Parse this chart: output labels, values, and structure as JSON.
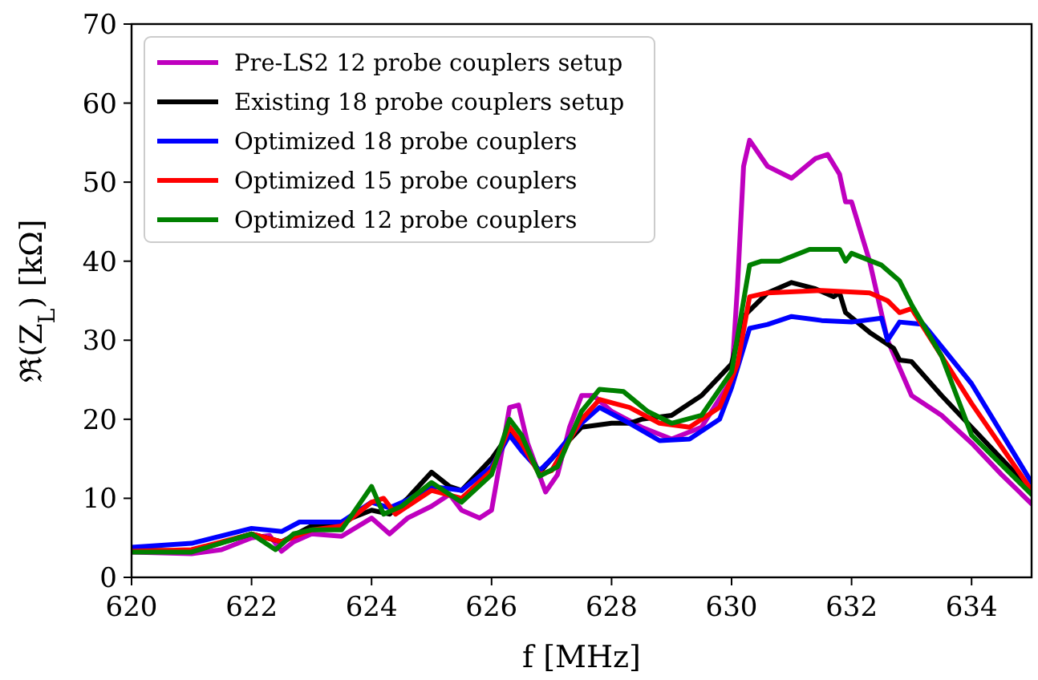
{
  "chart_data": {
    "type": "line",
    "xlabel": "f [MHz]",
    "ylabel": "ℜ(Z$_{L}$) [kΩ]",
    "xlim": [
      620,
      635
    ],
    "ylim": [
      0,
      70
    ],
    "xticks": [
      620,
      622,
      624,
      626,
      628,
      630,
      632,
      634
    ],
    "yticks": [
      0,
      10,
      20,
      30,
      40,
      50,
      60,
      70
    ],
    "grid": false,
    "legend": "top left",
    "line_style": "solid",
    "marker": "none",
    "series": [
      {
        "name": "Pre-LS2 12 probe couplers setup",
        "color": "#bf00bf",
        "x": [
          620,
          621,
          621.5,
          622,
          622.3,
          622.5,
          622.7,
          623,
          623.5,
          624,
          624.3,
          624.6,
          625,
          625.3,
          625.5,
          625.8,
          626,
          626.3,
          626.45,
          626.6,
          626.9,
          627.1,
          627.3,
          627.5,
          627.7,
          628,
          628.5,
          629,
          629.5,
          630,
          630.1,
          630.2,
          630.3,
          630.6,
          631,
          631.4,
          631.6,
          631.8,
          631.9,
          632,
          632.3,
          632.6,
          633,
          633.5,
          634,
          634.5,
          635
        ],
        "values": [
          3.2,
          3,
          3.5,
          5,
          5.3,
          3.3,
          4.5,
          5.5,
          5.2,
          7.5,
          5.5,
          7.5,
          9,
          10.5,
          8.5,
          7.5,
          8.5,
          21.5,
          21.8,
          17,
          10.8,
          13,
          19,
          23,
          23,
          21,
          19,
          17.5,
          19,
          25,
          37,
          52,
          55.3,
          52,
          50.5,
          53,
          53.5,
          51,
          47.5,
          47.5,
          40,
          30,
          23,
          20.5,
          17,
          13,
          9.3
        ]
      },
      {
        "name": "Existing 18 probe couplers setup",
        "color": "#000000",
        "x": [
          620,
          621,
          622,
          622.5,
          623,
          623.5,
          624,
          624.3,
          624.6,
          625,
          625.3,
          625.5,
          626,
          626.3,
          626.5,
          626.8,
          627,
          627.5,
          628,
          628.3,
          628.5,
          629,
          629.5,
          630,
          630.2,
          630.6,
          631,
          631.4,
          631.7,
          631.8,
          631.9,
          632.3,
          632.7,
          632.8,
          633,
          633.5,
          634,
          635
        ],
        "values": [
          3.5,
          3.3,
          5.5,
          4.5,
          6.5,
          7,
          8.5,
          8,
          10,
          13.3,
          11.5,
          11,
          15,
          18.2,
          17,
          13.3,
          15,
          19,
          19.5,
          19.5,
          20,
          20.5,
          23,
          27,
          33,
          36,
          37.3,
          36.5,
          35.5,
          36,
          33.5,
          31,
          29,
          27.5,
          27.3,
          23,
          19,
          11
        ]
      },
      {
        "name": "Optimized 18 probe couplers",
        "color": "#0000ff",
        "x": [
          620,
          621,
          622,
          622.5,
          622.8,
          623,
          623.5,
          624,
          624.3,
          624.6,
          625,
          625.5,
          626,
          626.3,
          626.5,
          626.8,
          627,
          627.5,
          627.8,
          628.3,
          628.8,
          629.3,
          629.8,
          630,
          630.3,
          630.6,
          631,
          631.5,
          632,
          632.5,
          632.6,
          632.8,
          633.2,
          634,
          635
        ],
        "values": [
          3.8,
          4.3,
          6.2,
          5.8,
          7,
          7,
          7,
          9.5,
          8.8,
          9.8,
          11.5,
          11,
          14,
          18,
          16,
          13.5,
          15,
          19.5,
          21.5,
          19.5,
          17.3,
          17.5,
          20,
          24,
          31.5,
          32,
          33,
          32.5,
          32.3,
          32.8,
          30,
          32.3,
          32,
          24.5,
          12
        ]
      },
      {
        "name": "Optimized 15 probe couplers",
        "color": "#ff0000",
        "x": [
          620,
          621,
          622,
          622.5,
          623,
          623.5,
          624,
          624.2,
          624.4,
          625,
          625.5,
          626,
          626.3,
          626.5,
          626.8,
          627,
          627.5,
          627.8,
          628.3,
          628.8,
          629.3,
          629.8,
          630.1,
          630.3,
          630.6,
          631.5,
          632.3,
          632.6,
          632.8,
          633,
          634,
          635
        ],
        "values": [
          3.3,
          3.5,
          5.5,
          4.5,
          6,
          6.5,
          9.5,
          10,
          8,
          11,
          10,
          13.5,
          19,
          17,
          13,
          13.5,
          20,
          22.5,
          21.5,
          19.5,
          19,
          21.5,
          27,
          35.5,
          36,
          36.3,
          36,
          35,
          33.5,
          34,
          22,
          11
        ]
      },
      {
        "name": "Optimized 12 probe couplers",
        "color": "#008000",
        "x": [
          620,
          621,
          622,
          622.4,
          622.7,
          623,
          623.5,
          624,
          624.2,
          624.5,
          625,
          625.5,
          626,
          626.3,
          626.5,
          626.8,
          627.1,
          627.5,
          627.8,
          628.2,
          628.6,
          629,
          629.5,
          630,
          630.3,
          630.5,
          630.8,
          631.3,
          631.8,
          631.9,
          632,
          632.5,
          632.8,
          633,
          633.5,
          634,
          635
        ],
        "values": [
          3.2,
          3.2,
          5.5,
          3.5,
          5.5,
          6,
          6,
          11.5,
          8,
          9,
          12,
          9.5,
          13,
          20,
          18,
          12.8,
          14,
          21,
          23.8,
          23.5,
          21,
          19.5,
          20.5,
          26,
          39.5,
          40,
          40,
          41.5,
          41.5,
          40,
          41,
          39.5,
          37.5,
          34.5,
          28,
          18,
          10.5
        ]
      }
    ]
  }
}
